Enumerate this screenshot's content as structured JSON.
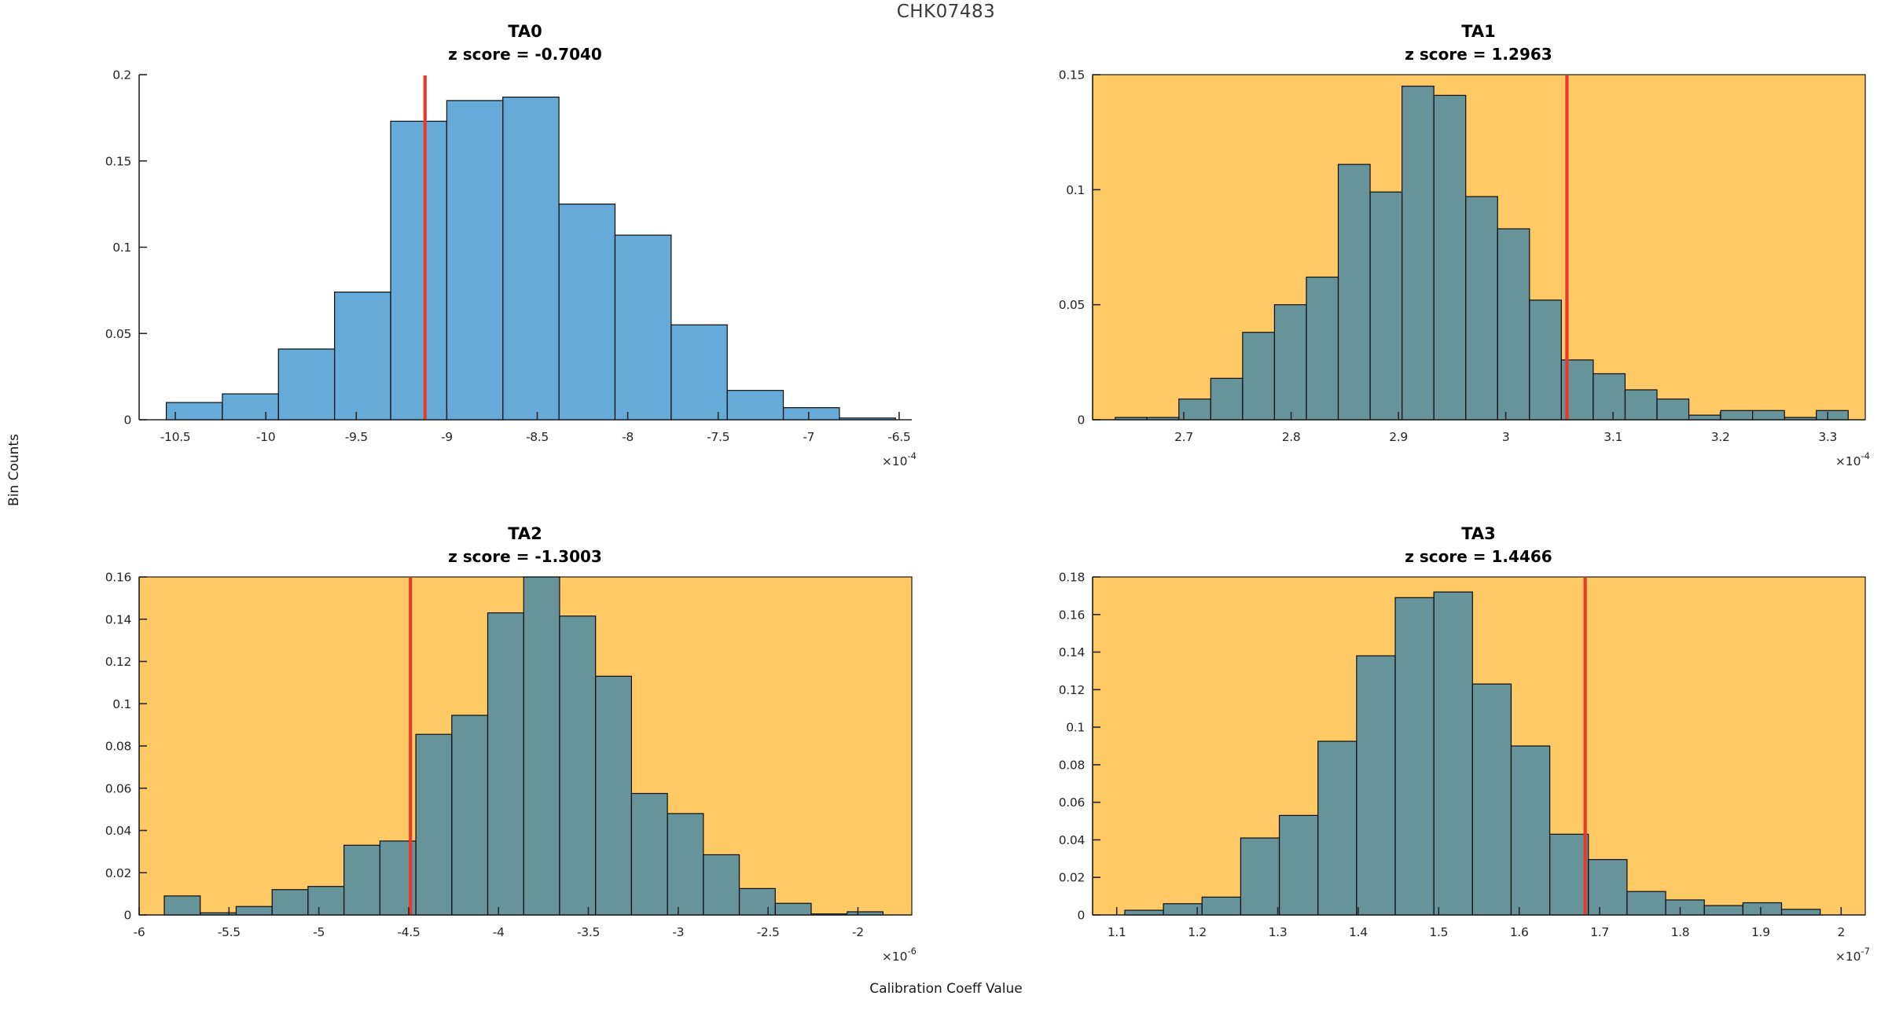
{
  "figure": {
    "title": "CHK07483",
    "xlabel": "Calibration Coeff Value",
    "ylabel": "Bin Counts"
  },
  "colors": {
    "bar_fill": "#0072BD",
    "bar_fill_opacity": 0.6,
    "bar_edge": "#0d0d0d",
    "orange_background": "#FFC966",
    "white_background": "#FFFFFF",
    "red_line": "#E8392B",
    "axis": "#262626",
    "tick_label": "#262626",
    "figure_title_color": "#3A3A3A"
  },
  "chart_data": [
    {
      "type": "bar",
      "subtype": "histogram",
      "title": "TA0",
      "subtitle": "z score = -0.7040",
      "z_score": -0.704,
      "background": "white",
      "bin_start": -10.55,
      "bin_width": 0.31,
      "values": [
        0.01,
        0.015,
        0.041,
        0.074,
        0.173,
        0.185,
        0.187,
        0.125,
        0.107,
        0.055,
        0.017,
        0.007,
        0.001
      ],
      "red_line_x": -9.12,
      "xlim": [
        -10.7,
        -6.43
      ],
      "ylim": [
        0,
        0.2
      ],
      "xticks": [
        -10.5,
        -10,
        -9.5,
        -9,
        -8.5,
        -8,
        -7.5,
        -7,
        -6.5
      ],
      "yticks": [
        0,
        0.05,
        0.1,
        0.15,
        0.2
      ],
      "x_multiplier": "×10",
      "x_exponent": "-4",
      "xlabel": "",
      "ylabel": "",
      "grid": false,
      "legend": null
    },
    {
      "type": "bar",
      "subtype": "histogram",
      "title": "TA1",
      "subtitle": "z score = 1.2963",
      "z_score": 1.2963,
      "background": "orange",
      "bin_start": 2.636,
      "bin_width": 0.0297,
      "values": [
        0.001,
        0.001,
        0.009,
        0.018,
        0.038,
        0.05,
        0.062,
        0.111,
        0.099,
        0.145,
        0.141,
        0.097,
        0.083,
        0.052,
        0.026,
        0.02,
        0.013,
        0.009,
        0.002,
        0.004,
        0.004,
        0.001,
        0.004
      ],
      "red_line_x": 3.057,
      "xlim": [
        2.615,
        3.335
      ],
      "ylim": [
        0,
        0.15
      ],
      "xticks": [
        2.7,
        2.8,
        2.9,
        3,
        3.1,
        3.2,
        3.3
      ],
      "yticks": [
        0,
        0.05,
        0.1,
        0.15
      ],
      "x_multiplier": "×10",
      "x_exponent": "-4",
      "xlabel": "",
      "ylabel": "",
      "grid": false,
      "legend": null
    },
    {
      "type": "bar",
      "subtype": "histogram",
      "title": "TA2",
      "subtitle": "z score = -1.3003",
      "z_score": -1.3003,
      "background": "orange",
      "bin_start": -5.86,
      "bin_width": 0.2,
      "values": [
        0.009,
        0.001,
        0.004,
        0.012,
        0.0135,
        0.033,
        0.035,
        0.0855,
        0.0945,
        0.143,
        0.16,
        0.1415,
        0.113,
        0.0575,
        0.048,
        0.0285,
        0.0125,
        0.0055,
        0.0005,
        0.0015
      ],
      "red_line_x": -4.49,
      "xlim": [
        -6.0,
        -1.7
      ],
      "ylim": [
        0,
        0.16
      ],
      "xticks": [
        -6,
        -5.5,
        -5,
        -4.5,
        -4,
        -3.5,
        -3,
        -2.5,
        -2
      ],
      "yticks": [
        0,
        0.02,
        0.04,
        0.06,
        0.08,
        0.1,
        0.12,
        0.14,
        0.16
      ],
      "x_multiplier": "×10",
      "x_exponent": "-6",
      "xlabel": "",
      "ylabel": "",
      "grid": false,
      "legend": null
    },
    {
      "type": "bar",
      "subtype": "histogram",
      "title": "TA3",
      "subtitle": "z score = 1.4466",
      "z_score": 1.4466,
      "background": "orange",
      "bin_start": 1.11,
      "bin_width": 0.048,
      "values": [
        0.0025,
        0.006,
        0.0095,
        0.041,
        0.053,
        0.0925,
        0.138,
        0.169,
        0.172,
        0.123,
        0.09,
        0.043,
        0.0295,
        0.0125,
        0.008,
        0.005,
        0.0065,
        0.003
      ],
      "red_line_x": 1.682,
      "xlim": [
        1.07,
        2.03
      ],
      "ylim": [
        0,
        0.18
      ],
      "xticks": [
        1.1,
        1.2,
        1.3,
        1.4,
        1.5,
        1.6,
        1.7,
        1.8,
        1.9,
        2
      ],
      "yticks": [
        0,
        0.02,
        0.04,
        0.06,
        0.08,
        0.1,
        0.12,
        0.14,
        0.16,
        0.18
      ],
      "x_multiplier": "×10",
      "x_exponent": "-7",
      "xlabel": "",
      "ylabel": "",
      "grid": false,
      "legend": null
    }
  ]
}
